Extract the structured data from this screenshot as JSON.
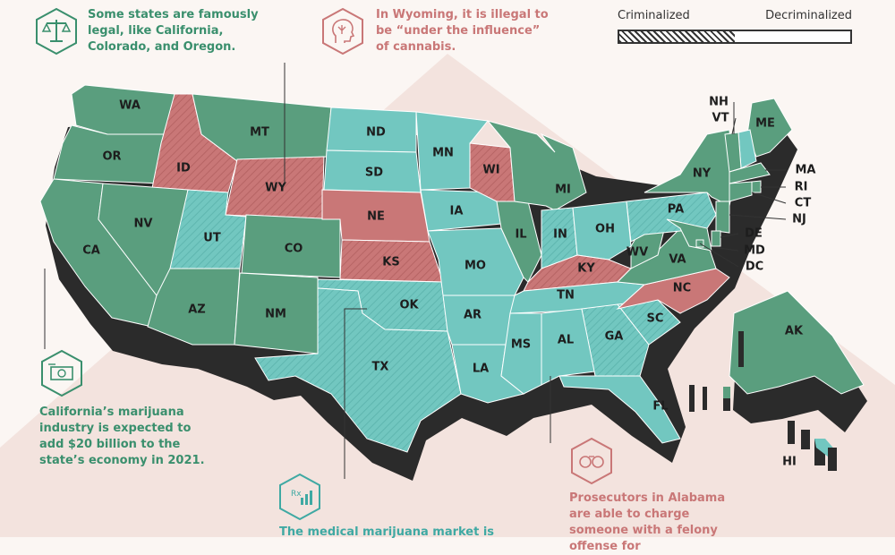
{
  "legend": {
    "left_label": "Criminalized",
    "right_label": "Decriminalized"
  },
  "colors": {
    "legal": "#5a9e7e",
    "illegal": "#c97777",
    "medical": "#72c7c0",
    "shadow": "#2b2b2b",
    "text_green": "#3a8f6d",
    "text_red": "#c97777",
    "text_teal": "#3fa9a3"
  },
  "callouts": {
    "legal_states": "Some states are famously legal, like California, Colorado, and Oregon.",
    "wyoming": "In Wyoming, it is illegal to be “under the influence” of cannabis.",
    "california": "California’s marijuana industry is expected to add $20 billion to the state’s economy in 2021.",
    "medical_market": "The medical marijuana market is",
    "alabama": "Prosecutors in Alabama are able to charge someone with a felony offense for"
  },
  "icons": {
    "legal_states": "scales-of-justice-icon",
    "wyoming": "head-with-cannabis-leaf-icon",
    "california": "money-bill-icon",
    "medical_market": "prescription-chart-icon",
    "alabama": "handcuffs-icon"
  },
  "states": {
    "WA": "WA",
    "OR": "OR",
    "CA": "CA",
    "ID": "ID",
    "NV": "NV",
    "MT": "MT",
    "WY": "WY",
    "UT": "UT",
    "AZ": "AZ",
    "CO": "CO",
    "NM": "NM",
    "ND": "ND",
    "SD": "SD",
    "NE": "NE",
    "KS": "KS",
    "OK": "OK",
    "TX": "TX",
    "MN": "MN",
    "IA": "IA",
    "MO": "MO",
    "AR": "AR",
    "LA": "LA",
    "WI": "WI",
    "IL": "IL",
    "MI": "MI",
    "IN": "IN",
    "OH": "OH",
    "KY": "KY",
    "TN": "TN",
    "MS": "MS",
    "AL": "AL",
    "GA": "GA",
    "FL": "FL",
    "SC": "SC",
    "NC": "NC",
    "VA": "VA",
    "WV": "WV",
    "PA": "PA",
    "NY": "NY",
    "ME": "ME",
    "NH": "NH",
    "VT": "VT",
    "MA": "MA",
    "RI": "RI",
    "CT": "CT",
    "NJ": "NJ",
    "DE": "DE",
    "MD": "MD",
    "DC": "DC",
    "AK": "AK",
    "HI": "HI"
  }
}
